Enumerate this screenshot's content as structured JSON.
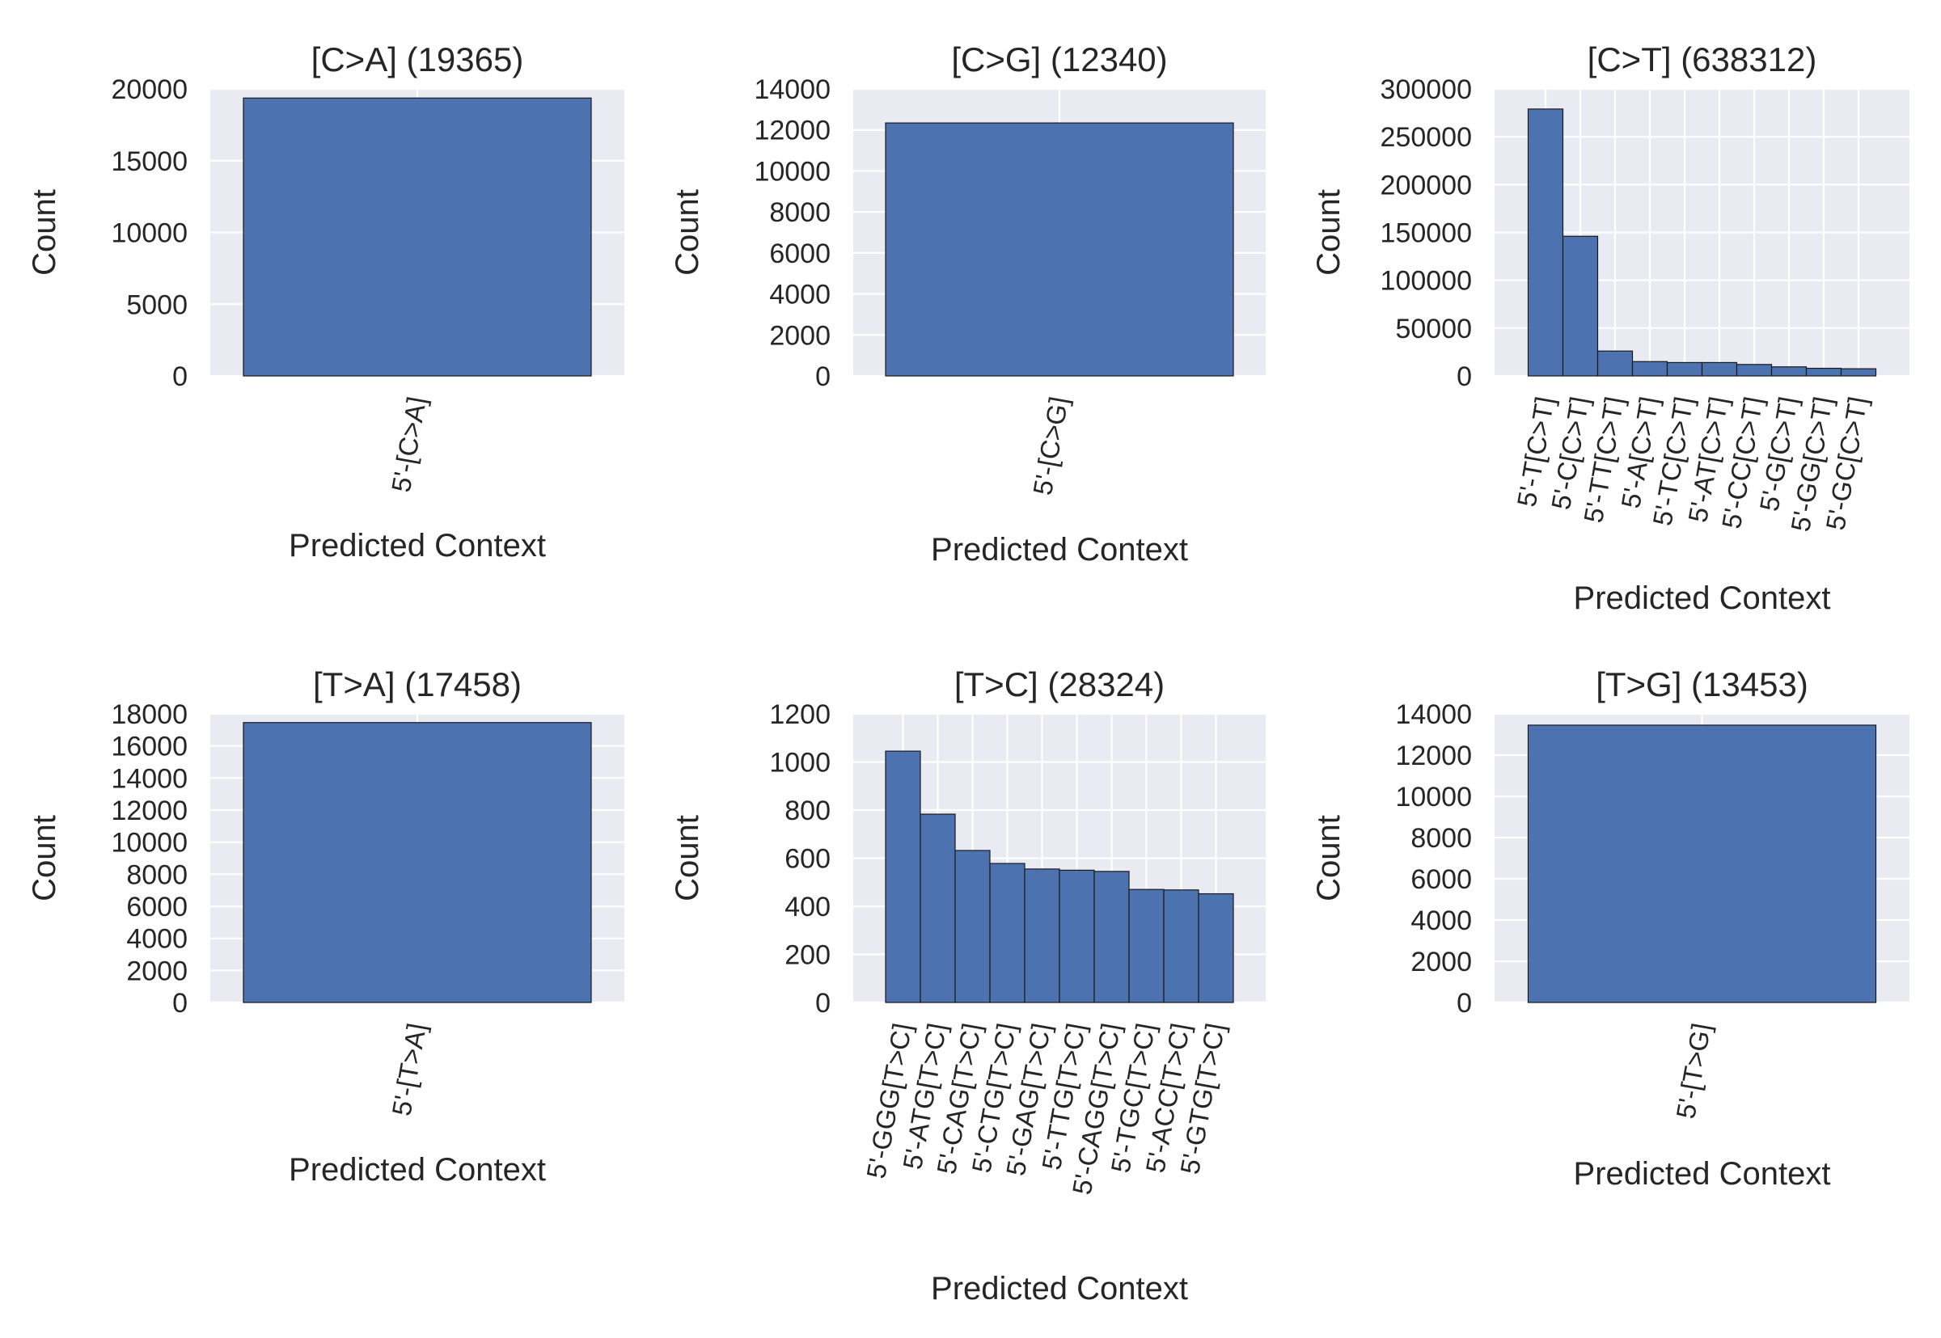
{
  "colors": {
    "bar": "#4c72b0",
    "bar_edge": "#1a1a1a",
    "plot_bg": "#eaeaf2",
    "grid": "#ffffff",
    "text": "#262626"
  },
  "chart_data": [
    {
      "type": "bar",
      "title": "[C>A] (19365)",
      "xlabel": "Predicted Context",
      "ylabel": "Count",
      "categories": [
        "5'-[C>A]"
      ],
      "values": [
        19365
      ],
      "ylim": [
        0,
        20000
      ],
      "yticks": [
        0,
        5000,
        10000,
        15000,
        20000
      ],
      "grid": true
    },
    {
      "type": "bar",
      "title": "[C>G] (12340)",
      "xlabel": "Predicted Context",
      "ylabel": "Count",
      "categories": [
        "5'-[C>G]"
      ],
      "values": [
        12340
      ],
      "ylim": [
        0,
        14000
      ],
      "yticks": [
        0,
        2000,
        4000,
        6000,
        8000,
        10000,
        12000,
        14000
      ],
      "grid": true
    },
    {
      "type": "bar",
      "title": "[C>T] (638312)",
      "xlabel": "Predicted Context",
      "ylabel": "Count",
      "categories": [
        "5'-T[C>T]",
        "5'-C[C>T]",
        "5'-TT[C>T]",
        "5'-A[C>T]",
        "5'-TC[C>T]",
        "5'-AT[C>T]",
        "5'-CC[C>T]",
        "5'-G[C>T]",
        "5'-GG[C>T]",
        "5'-GC[C>T]"
      ],
      "values": [
        279000,
        146000,
        26000,
        15000,
        14000,
        14000,
        12000,
        9500,
        8000,
        7500
      ],
      "ylim": [
        0,
        300000
      ],
      "yticks": [
        0,
        50000,
        100000,
        150000,
        200000,
        250000,
        300000
      ],
      "grid": true
    },
    {
      "type": "bar",
      "title": "[T>A] (17458)",
      "xlabel": "Predicted Context",
      "ylabel": "Count",
      "categories": [
        "5'-[T>A]"
      ],
      "values": [
        17458
      ],
      "ylim": [
        0,
        18000
      ],
      "yticks": [
        0,
        2000,
        4000,
        6000,
        8000,
        10000,
        12000,
        14000,
        16000,
        18000
      ],
      "grid": true
    },
    {
      "type": "bar",
      "title": "[T>C] (28324)",
      "xlabel": "Predicted Context",
      "ylabel": "Count",
      "categories": [
        "5'-GGG[T>C]",
        "5'-ATG[T>C]",
        "5'-CAG[T>C]",
        "5'-CTG[T>C]",
        "5'-GAG[T>C]",
        "5'-TTG[T>C]",
        "5'-CAGG[T>C]",
        "5'-TGC[T>C]",
        "5'-ACC[T>C]",
        "5'-GTG[T>C]"
      ],
      "values": [
        1045,
        783,
        632,
        578,
        555,
        550,
        545,
        470,
        468,
        452
      ],
      "ylim": [
        0,
        1200
      ],
      "yticks": [
        0,
        200,
        400,
        600,
        800,
        1000,
        1200
      ],
      "grid": true
    },
    {
      "type": "bar",
      "title": "[T>G] (13453)",
      "xlabel": "Predicted Context",
      "ylabel": "Count",
      "categories": [
        "5'-[T>G]"
      ],
      "values": [
        13453
      ],
      "ylim": [
        0,
        14000
      ],
      "yticks": [
        0,
        2000,
        4000,
        6000,
        8000,
        10000,
        12000,
        14000
      ],
      "grid": true
    }
  ]
}
